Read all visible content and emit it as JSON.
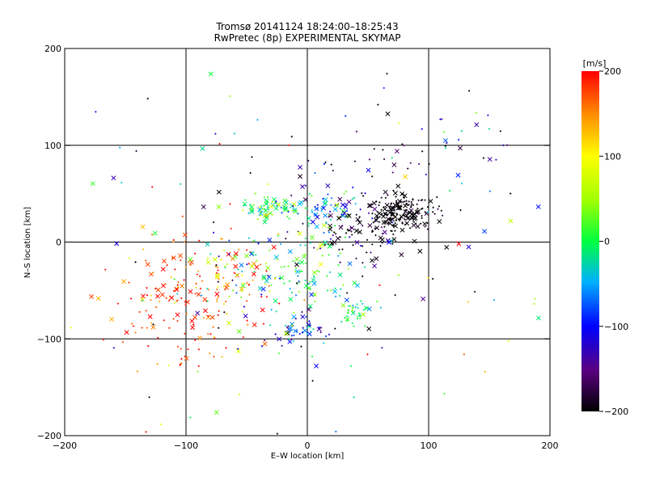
{
  "chart_data": {
    "type": "scatter",
    "title": "Tromsø 20141124 18:24:00–18:25:43",
    "subtitle": "RwPretec (8p) EXPERIMENTAL SKYMAP",
    "xlabel": "E–W location [km]",
    "ylabel": "N–S location [km]",
    "xlim": [
      -200,
      200
    ],
    "ylim": [
      -200,
      200
    ],
    "x_ticks": [
      -200,
      -100,
      0,
      100,
      200
    ],
    "y_ticks": [
      -200,
      -100,
      0,
      100,
      200
    ],
    "x_tick_labels": [
      "−200",
      "−100",
      "0",
      "100",
      "200"
    ],
    "y_tick_labels": [
      "−200",
      "−100",
      "0",
      "100",
      "200"
    ],
    "grid": true,
    "colorbar": {
      "label": "[m/s]",
      "range": [
        -200,
        200
      ],
      "ticks": [
        -200,
        -100,
        0,
        100,
        200
      ],
      "tick_labels": [
        "−200",
        "−100",
        "0",
        "100",
        "200"
      ],
      "colormap": [
        "#000000",
        "#5a0080",
        "#0000ff",
        "#00b0ff",
        "#00ff40",
        "#a0ff00",
        "#ffff00",
        "#ff9000",
        "#ff0000"
      ]
    },
    "markers": {
      "large": "x",
      "small": "+"
    },
    "clusters": [
      {
        "cx": -35,
        "cy": 35,
        "sx": 12,
        "sy": 6,
        "n": 70,
        "v": -5,
        "vs": 50
      },
      {
        "cx": 15,
        "cy": 35,
        "sx": 15,
        "sy": 8,
        "n": 60,
        "v": -60,
        "vs": 50
      },
      {
        "cx": 75,
        "cy": 30,
        "sx": 15,
        "sy": 10,
        "n": 190,
        "v": -200,
        "vs": 12
      },
      {
        "cx": 40,
        "cy": 10,
        "sx": 25,
        "sy": 15,
        "n": 90,
        "v": -180,
        "vs": 40
      },
      {
        "cx": 0,
        "cy": -30,
        "sx": 20,
        "sy": 20,
        "n": 90,
        "v": 5,
        "vs": 40
      },
      {
        "cx": 40,
        "cy": -70,
        "sx": 6,
        "sy": 6,
        "n": 40,
        "v": -10,
        "vs": 30
      },
      {
        "cx": -10,
        "cy": -90,
        "sx": 15,
        "sy": 10,
        "n": 50,
        "v": -100,
        "vs": 40
      },
      {
        "cx": -100,
        "cy": -60,
        "sx": 30,
        "sy": 35,
        "n": 170,
        "v": 180,
        "vs": 30
      },
      {
        "cx": -60,
        "cy": -30,
        "sx": 20,
        "sy": 25,
        "n": 90,
        "v": 60,
        "vs": 110
      },
      {
        "cx": 60,
        "cy": 80,
        "sx": 60,
        "sy": 35,
        "n": 60,
        "v": -150,
        "vs": 80
      },
      {
        "cx": 0,
        "cy": 0,
        "sx": 120,
        "sy": 110,
        "n": 180,
        "v": -60,
        "vs": 140
      }
    ]
  }
}
